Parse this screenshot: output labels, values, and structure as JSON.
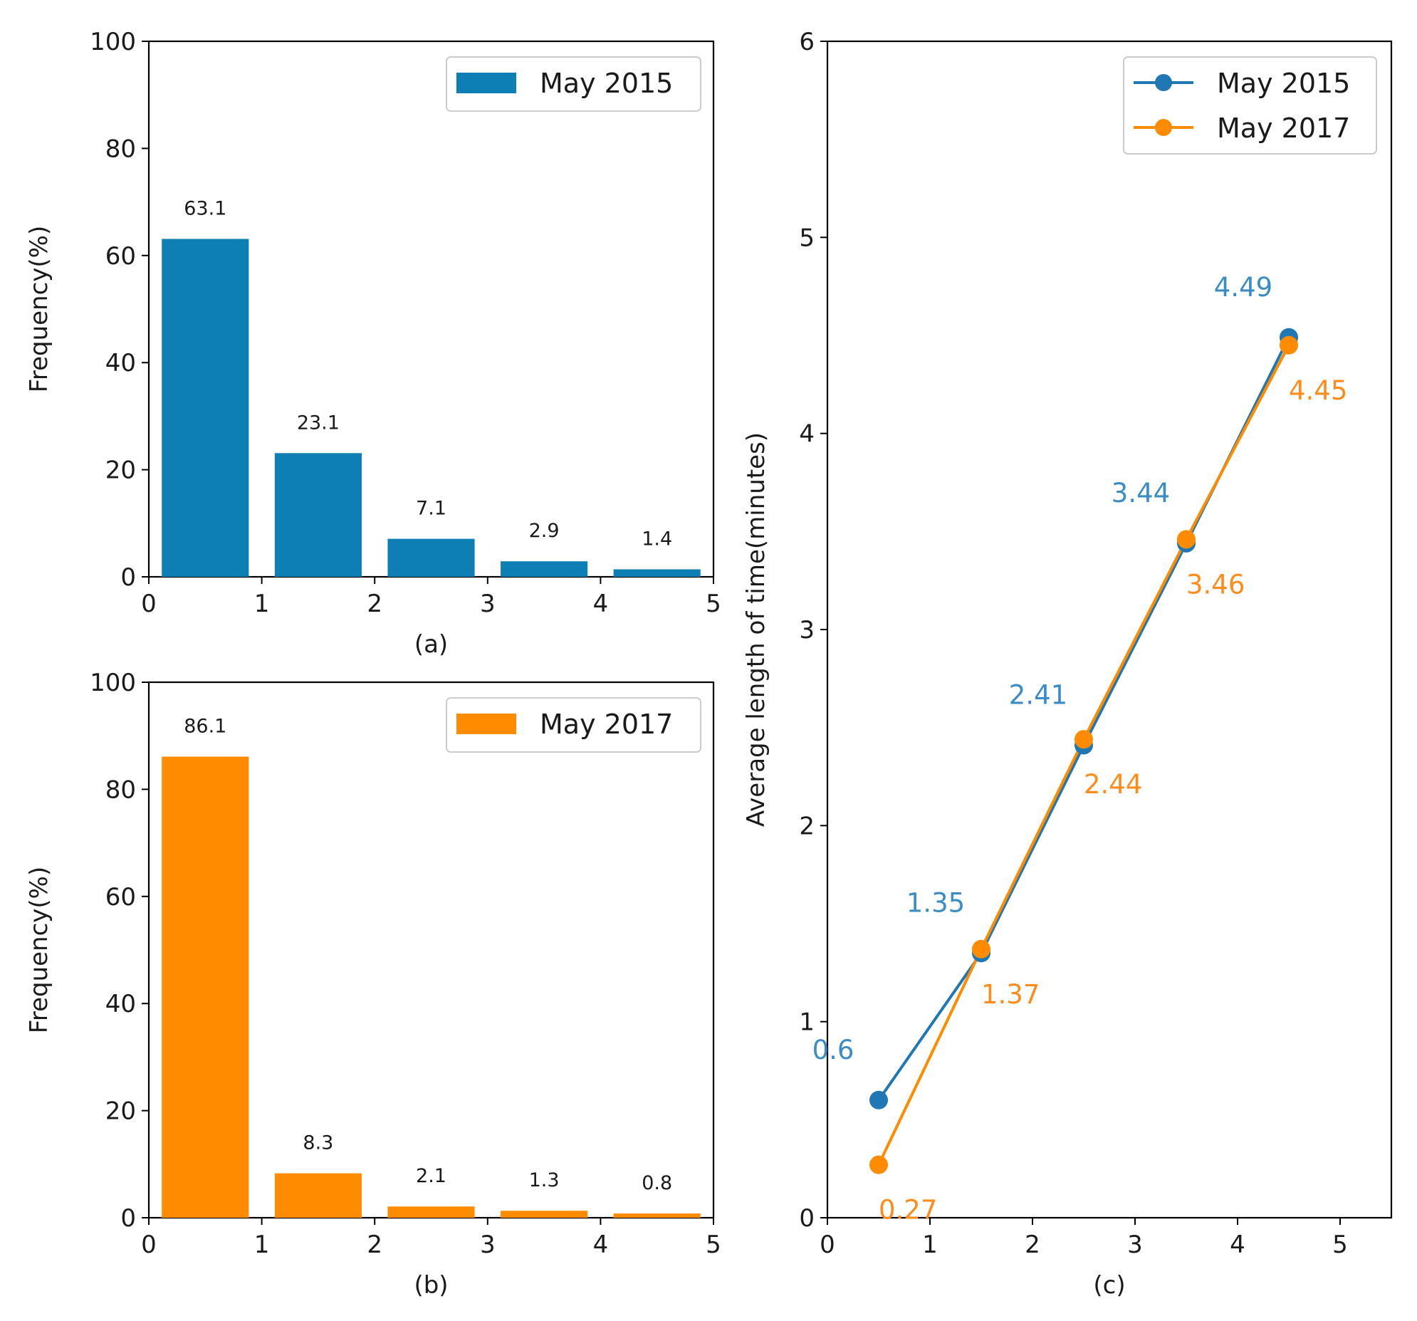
{
  "chart_data": [
    {
      "id": "a",
      "type": "bar",
      "panel_label": "(a)",
      "xlabel": "",
      "ylabel": "Frequency(%)",
      "xlim": [
        0,
        5
      ],
      "ylim": [
        0,
        100
      ],
      "xticks": [
        0,
        1,
        2,
        3,
        4,
        5
      ],
      "yticks": [
        0,
        20,
        40,
        60,
        80,
        100
      ],
      "bar_centers": [
        0.5,
        1.5,
        2.5,
        3.5,
        4.5
      ],
      "bar_width": 0.77,
      "series": [
        {
          "name": "May 2015",
          "color": "#0e7fb5",
          "values": [
            63.1,
            23.1,
            7.1,
            2.9,
            1.4
          ],
          "labels": [
            "63.1",
            "23.1",
            "7.1",
            "2.9",
            "1.4"
          ]
        }
      ],
      "legend": "top-right",
      "grid": false
    },
    {
      "id": "b",
      "type": "bar",
      "panel_label": "(b)",
      "xlabel": "",
      "ylabel": "Frequency(%)",
      "xlim": [
        0,
        5
      ],
      "ylim": [
        0,
        100
      ],
      "xticks": [
        0,
        1,
        2,
        3,
        4,
        5
      ],
      "yticks": [
        0,
        20,
        40,
        60,
        80,
        100
      ],
      "bar_centers": [
        0.5,
        1.5,
        2.5,
        3.5,
        4.5
      ],
      "bar_width": 0.77,
      "series": [
        {
          "name": "May 2017",
          "color": "#ff8c00",
          "values": [
            86.1,
            8.3,
            2.1,
            1.3,
            0.8
          ],
          "labels": [
            "86.1",
            "8.3",
            "2.1",
            "1.3",
            "0.8"
          ]
        }
      ],
      "legend": "top-right",
      "grid": false
    },
    {
      "id": "c",
      "type": "line",
      "panel_label": "(c)",
      "xlabel": "",
      "ylabel": "Average length of time(minutes)",
      "xlim": [
        0,
        5.5
      ],
      "ylim": [
        0,
        6
      ],
      "xticks": [
        0,
        1,
        2,
        3,
        4,
        5
      ],
      "yticks": [
        0,
        1,
        2,
        3,
        4,
        5,
        6
      ],
      "x": [
        0.5,
        1.5,
        2.5,
        3.5,
        4.5
      ],
      "series": [
        {
          "name": "May 2015",
          "color": "#1f77b4",
          "label_color": "#3a8dc4",
          "values": [
            0.6,
            1.35,
            2.41,
            3.44,
            4.49
          ],
          "labels": [
            "0.6",
            "1.35",
            "2.41",
            "3.44",
            "4.49"
          ],
          "label_side": "above"
        },
        {
          "name": "May 2017",
          "color": "#ff8c00",
          "label_color": "#ff8c1a",
          "values": [
            0.27,
            1.37,
            2.44,
            3.46,
            4.45
          ],
          "labels": [
            "0.27",
            "1.37",
            "2.44",
            "3.46",
            "4.45"
          ],
          "label_side": "below"
        }
      ],
      "legend": "top-right",
      "grid": false
    }
  ]
}
